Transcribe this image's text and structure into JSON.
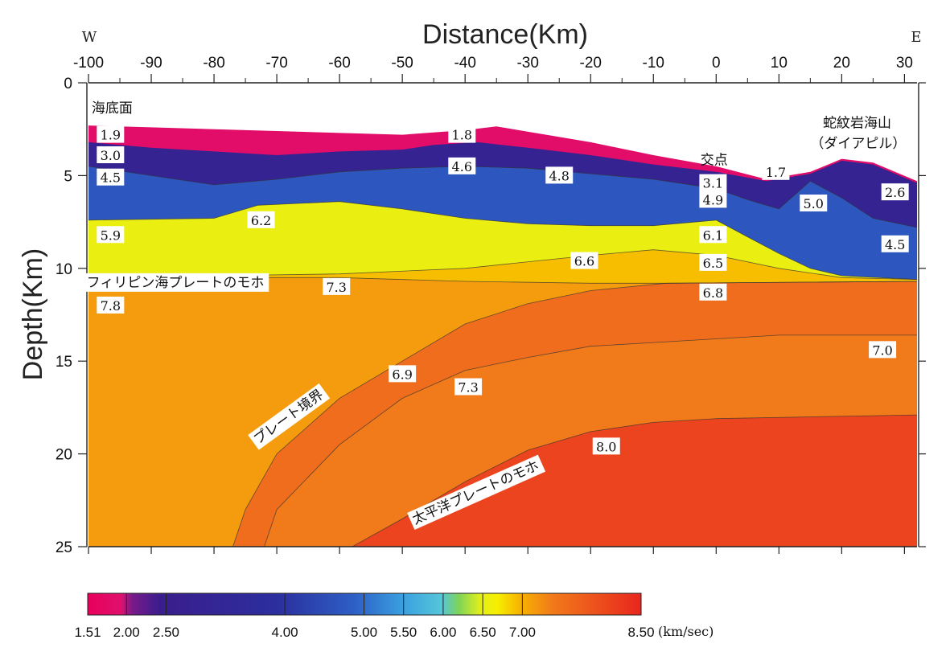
{
  "chart_data": {
    "type": "heatmap",
    "xlabel": "Distance(Km)",
    "ylabel": "Depth(Km)",
    "xlim": [
      -100,
      32
    ],
    "ylim": [
      0,
      25
    ],
    "x_ticks": [
      "-100",
      "-90",
      "-80",
      "-70",
      "-60",
      "-50",
      "-40",
      "-30",
      "-20",
      "-10",
      "0",
      "10",
      "20",
      "30"
    ],
    "y_ticks": [
      "0",
      "5",
      "10",
      "15",
      "20",
      "25"
    ],
    "west_label": "W",
    "east_label": "E",
    "colorscale": {
      "unit": "(km/sec)",
      "min": 1.51,
      "max": 8.5,
      "tick_labels": [
        "1.51",
        "2.00",
        "2.50",
        "4.00",
        "5.00",
        "5.50",
        "6.00",
        "6.50",
        "7.00",
        "8.50"
      ],
      "ticks": [
        1.51,
        2.0,
        2.5,
        4.0,
        5.0,
        5.5,
        6.0,
        6.5,
        7.0,
        8.5
      ]
    },
    "layers": [
      {
        "velocity": 1.8,
        "top": [
          [
            -100,
            2.3
          ],
          [
            -90,
            2.4
          ],
          [
            -70,
            2.6
          ],
          [
            -50,
            2.8
          ],
          [
            -40,
            2.55
          ],
          [
            -35,
            2.35
          ],
          [
            -20,
            3.2
          ],
          [
            -10,
            3.9
          ],
          [
            0,
            4.5
          ],
          [
            8,
            5.2
          ],
          [
            15,
            4.8
          ],
          [
            20,
            4.1
          ],
          [
            25,
            4.3
          ],
          [
            32,
            5.3
          ]
        ]
      },
      {
        "velocity": 3.0,
        "top": [
          [
            -100,
            3.2
          ],
          [
            -90,
            3.5
          ],
          [
            -80,
            3.7
          ],
          [
            -70,
            3.9
          ],
          [
            -60,
            3.7
          ],
          [
            -50,
            3.6
          ],
          [
            -45,
            3.35
          ],
          [
            -38,
            3.2
          ],
          [
            -30,
            3.5
          ],
          [
            -20,
            3.9
          ],
          [
            -10,
            4.4
          ],
          [
            0,
            4.8
          ],
          [
            8,
            5.3
          ],
          [
            15,
            4.9
          ],
          [
            20,
            4.2
          ],
          [
            25,
            4.4
          ],
          [
            32,
            5.4
          ]
        ]
      },
      {
        "velocity": 4.5,
        "top": [
          [
            -100,
            4.5
          ],
          [
            -90,
            5.0
          ],
          [
            -80,
            5.5
          ],
          [
            -70,
            5.2
          ],
          [
            -60,
            4.8
          ],
          [
            -50,
            4.6
          ],
          [
            -40,
            4.5
          ],
          [
            -30,
            4.6
          ],
          [
            -20,
            4.9
          ],
          [
            -10,
            5.2
          ],
          [
            0,
            5.7
          ],
          [
            5,
            6.3
          ],
          [
            10,
            6.8
          ],
          [
            15,
            5.3
          ],
          [
            20,
            6.2
          ],
          [
            25,
            7.3
          ],
          [
            32,
            7.8
          ]
        ]
      },
      {
        "velocity": 6.1,
        "top": [
          [
            -100,
            7.4
          ],
          [
            -80,
            7.3
          ],
          [
            -73,
            6.6
          ],
          [
            -60,
            6.4
          ],
          [
            -50,
            6.8
          ],
          [
            -40,
            7.3
          ],
          [
            -30,
            7.6
          ],
          [
            -20,
            7.7
          ],
          [
            -10,
            7.7
          ],
          [
            0,
            7.4
          ],
          [
            5,
            8.3
          ],
          [
            10,
            9.2
          ],
          [
            15,
            10.0
          ],
          [
            20,
            10.4
          ],
          [
            32,
            10.6
          ]
        ]
      },
      {
        "velocity": 6.6,
        "top": [
          [
            -100,
            10.4
          ],
          [
            -80,
            10.4
          ],
          [
            -60,
            10.3
          ],
          [
            -40,
            10.0
          ],
          [
            -20,
            9.3
          ],
          [
            -10,
            9.0
          ],
          [
            0,
            9.3
          ],
          [
            10,
            10.0
          ],
          [
            20,
            10.5
          ],
          [
            32,
            10.6
          ]
        ]
      },
      {
        "velocity": 6.8,
        "top": [
          [
            -100,
            10.5
          ],
          [
            -80,
            10.5
          ],
          [
            -60,
            10.5
          ],
          [
            -40,
            10.7
          ],
          [
            -20,
            10.8
          ],
          [
            -8,
            10.8
          ],
          [
            32,
            10.7
          ]
        ]
      },
      {
        "velocity": 7.3,
        "top": [
          [
            -100,
            26
          ],
          [
            -80,
            26
          ],
          [
            -77,
            25
          ],
          [
            -75,
            23
          ],
          [
            -70,
            20
          ],
          [
            -60,
            17
          ],
          [
            -50,
            15
          ],
          [
            -40,
            13
          ],
          [
            -30,
            11.9
          ],
          [
            -20,
            11.2
          ],
          [
            -8,
            10.8
          ],
          [
            32,
            10.7
          ]
        ]
      },
      {
        "velocity": 7.0,
        "top": [
          [
            -100,
            26
          ],
          [
            -75,
            26
          ],
          [
            -72,
            25
          ],
          [
            -70,
            23
          ],
          [
            -60,
            19.5
          ],
          [
            -50,
            17
          ],
          [
            -40,
            15.5
          ],
          [
            -30,
            14.8
          ],
          [
            -20,
            14.2
          ],
          [
            -10,
            14.0
          ],
          [
            0,
            13.8
          ],
          [
            10,
            13.6
          ],
          [
            32,
            13.6
          ]
        ]
      },
      {
        "velocity": 8.0,
        "top": [
          [
            -100,
            26
          ],
          [
            -60,
            26
          ],
          [
            -58,
            25
          ],
          [
            -50,
            23.5
          ],
          [
            -40,
            21.5
          ],
          [
            -30,
            19.8
          ],
          [
            -20,
            18.8
          ],
          [
            -10,
            18.3
          ],
          [
            0,
            18.1
          ],
          [
            32,
            17.9
          ]
        ]
      }
    ],
    "velocity_labels": [
      {
        "text": "1.9",
        "x": -96.5,
        "y": 2.8
      },
      {
        "text": "3.0",
        "x": -96.5,
        "y": 3.9
      },
      {
        "text": "4.5",
        "x": -96.5,
        "y": 5.1
      },
      {
        "text": "5.9",
        "x": -96.5,
        "y": 8.2
      },
      {
        "text": "7.8",
        "x": -96.5,
        "y": 12.0
      },
      {
        "text": "6.2",
        "x": -72.5,
        "y": 7.4
      },
      {
        "text": "7.3",
        "x": -60.5,
        "y": 11.0
      },
      {
        "text": "1.8",
        "x": -40.5,
        "y": 2.8
      },
      {
        "text": "4.6",
        "x": -40.5,
        "y": 4.5
      },
      {
        "text": "4.8",
        "x": -25.0,
        "y": 5.0
      },
      {
        "text": "6.6",
        "x": -21.0,
        "y": 9.6
      },
      {
        "text": "6.9",
        "x": -50.0,
        "y": 15.7
      },
      {
        "text": "7.3",
        "x": -39.5,
        "y": 16.4
      },
      {
        "text": "8.0",
        "x": -17.5,
        "y": 19.6
      },
      {
        "text": "3.1",
        "x": -0.5,
        "y": 5.4
      },
      {
        "text": "4.9",
        "x": -0.5,
        "y": 6.3
      },
      {
        "text": "6.1",
        "x": -0.5,
        "y": 8.2
      },
      {
        "text": "6.5",
        "x": -0.5,
        "y": 9.7
      },
      {
        "text": "6.8",
        "x": -0.5,
        "y": 11.3
      },
      {
        "text": "1.7",
        "x": 9.5,
        "y": 4.8
      },
      {
        "text": "5.0",
        "x": 15.5,
        "y": 6.5
      },
      {
        "text": "2.6",
        "x": 28.5,
        "y": 5.9
      },
      {
        "text": "4.5",
        "x": 28.5,
        "y": 8.7
      },
      {
        "text": "7.0",
        "x": 26.5,
        "y": 14.4
      }
    ],
    "annotations": [
      {
        "name": "seafloor",
        "text": "海底面",
        "x": -99.5,
        "y": 1.6,
        "box": false,
        "rotate": 0
      },
      {
        "name": "philippine-moho",
        "text": "フィリピン海プレートのモホ",
        "x": -100.3,
        "y": 11.0,
        "box": true,
        "rotate": 0
      },
      {
        "name": "plate-boundary",
        "text": "プレート境界",
        "x": -73.0,
        "y": 19.5,
        "box": true,
        "rotate": -36
      },
      {
        "name": "pacific-moho",
        "text": "太平洋プレートのモホ",
        "x": -48.0,
        "y": 23.8,
        "box": true,
        "rotate": -24
      },
      {
        "name": "intersection",
        "text": "交点",
        "x": -2.5,
        "y": 4.4,
        "box": false,
        "rotate": 0
      },
      {
        "name": "seamount",
        "text": "蛇紋岩海山",
        "x": 17.0,
        "y": 2.4,
        "box": false,
        "rotate": 0
      },
      {
        "name": "seamount-diapir",
        "text": "（ダイアピル）",
        "x": 15.0,
        "y": 3.5,
        "box": false,
        "rotate": 0
      }
    ]
  }
}
